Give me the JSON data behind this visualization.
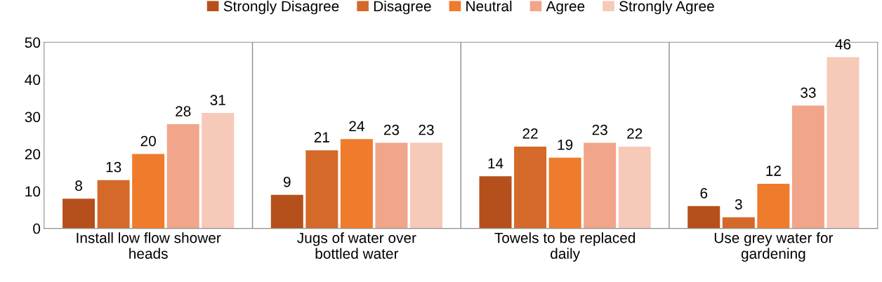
{
  "chart_data": {
    "type": "bar",
    "categories": [
      "Install low flow shower heads",
      "Jugs of water over bottled water",
      "Towels to be replaced daily",
      "Use grey water for gardening"
    ],
    "series": [
      {
        "name": "Strongly Disagree",
        "color": "#b5501c",
        "values": [
          8,
          9,
          14,
          6
        ]
      },
      {
        "name": "Disagree",
        "color": "#d4692a",
        "values": [
          13,
          21,
          22,
          3
        ]
      },
      {
        "name": "Neutral",
        "color": "#ef7b2c",
        "values": [
          20,
          24,
          19,
          12
        ]
      },
      {
        "name": "Agree",
        "color": "#f1a58a",
        "values": [
          28,
          23,
          23,
          33
        ]
      },
      {
        "name": "Strongly Agree",
        "color": "#f6c9b8",
        "values": [
          31,
          23,
          22,
          46
        ]
      }
    ],
    "ylim": [
      0,
      50
    ],
    "yticks": [
      0,
      10,
      20,
      30,
      40,
      50
    ],
    "grid": "x",
    "legend": "top",
    "data_labels": true
  }
}
